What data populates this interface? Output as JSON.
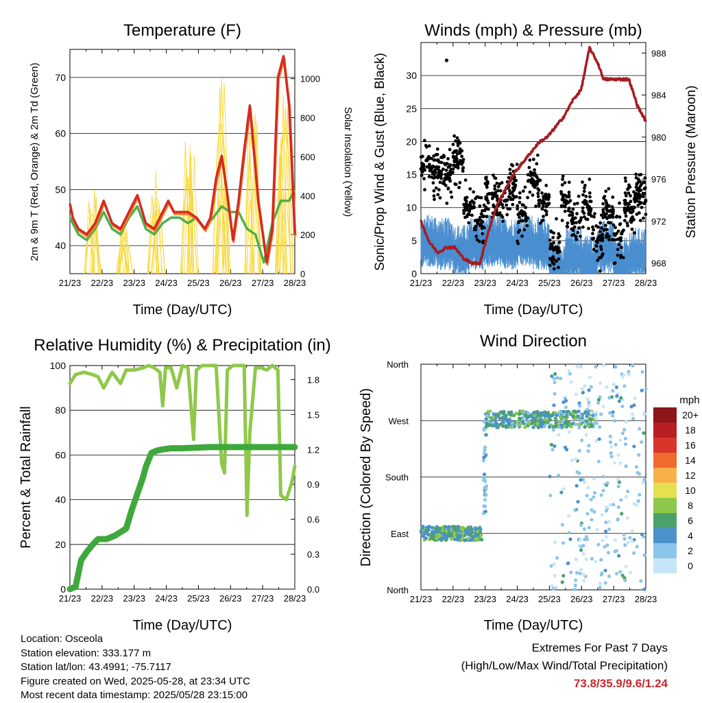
{
  "chart_data": [
    {
      "type": "line",
      "title": "Temperature (F)",
      "xlabel": "Time (Day/UTC)",
      "ylabel": "2m & 9m T (Red, Orange) & 2m Td (Green)",
      "ylabel_right": "Solar Insolation (Yellow)",
      "x_ticks": [
        "21/23",
        "22/23",
        "23/23",
        "24/23",
        "25/23",
        "26/23",
        "27/23",
        "28/23"
      ],
      "ylim": [
        35,
        75
      ],
      "y_ticks": [
        40,
        50,
        60,
        70
      ],
      "ylim_right": [
        0,
        1150
      ],
      "y_ticks_right": [
        0,
        200,
        400,
        600,
        800,
        1000
      ],
      "colors": {
        "t2m": "#d42a20",
        "t9m": "#f47d2a",
        "td": "#4eaf4a",
        "solar": "#f7d83a"
      },
      "series": [
        {
          "name": "2m T",
          "x": [
            0,
            0.1,
            0.3,
            0.6,
            0.9,
            1.2,
            1.5,
            1.8,
            2.1,
            2.4,
            2.7,
            3.0,
            3.2,
            3.5,
            3.7,
            4.0,
            4.2,
            4.5,
            4.8,
            5.0,
            5.2,
            5.4,
            5.6,
            5.8,
            6.0,
            6.2,
            6.4,
            6.7,
            7.0,
            7.2,
            7.4,
            7.6,
            7.8,
            8.0
          ],
          "values": [
            47.5,
            45,
            43,
            42,
            44,
            48,
            44,
            43,
            46,
            49,
            44,
            43,
            45,
            48,
            46,
            46,
            46,
            45,
            43,
            45,
            52,
            56,
            49,
            41,
            48,
            57,
            65,
            48,
            37,
            43,
            70,
            73.8,
            65,
            42
          ]
        },
        {
          "name": "2m Td",
          "x": [
            0,
            0.3,
            0.6,
            0.9,
            1.2,
            1.5,
            1.8,
            2.1,
            2.4,
            2.7,
            3.0,
            3.3,
            3.6,
            3.9,
            4.2,
            4.5,
            4.8,
            5.1,
            5.4,
            5.7,
            6.0,
            6.3,
            6.6,
            6.9,
            7.2,
            7.5,
            7.8,
            8.0
          ],
          "values": [
            45,
            42,
            41,
            43,
            46,
            43,
            42,
            45,
            47,
            43,
            42,
            44,
            45,
            45,
            44,
            45,
            43,
            45,
            47,
            46,
            46,
            43,
            42,
            37,
            44,
            48,
            48,
            50
          ]
        }
      ]
    },
    {
      "type": "scatter",
      "title": "Winds (mph) & Pressure (mb)",
      "xlabel": "Time (Day/UTC)",
      "ylabel": "Sonic/Prop Wind & Gust (Blue, Black)",
      "ylabel_right": "Station Pressure (Maroon)",
      "x_ticks": [
        "21/23",
        "22/23",
        "23/23",
        "24/23",
        "25/23",
        "26/23",
        "27/23",
        "28/23"
      ],
      "ylim": [
        0,
        35
      ],
      "y_ticks": [
        0,
        5,
        10,
        15,
        20,
        25,
        30
      ],
      "ylim_right": [
        967,
        989
      ],
      "y_ticks_right": [
        968,
        972,
        976,
        980,
        984,
        988
      ],
      "colors": {
        "wind": "#4a8fd0",
        "gust": "#000000",
        "pressure": "#a51c22"
      },
      "series": [
        {
          "name": "Station Pressure",
          "x": [
            0,
            0.3,
            0.6,
            0.9,
            1.2,
            1.5,
            1.8,
            2.1,
            2.4,
            2.7,
            3.0,
            3.3,
            3.6,
            3.9,
            4.2,
            4.5,
            4.8,
            5.1,
            5.4,
            5.7,
            6.0,
            6.1,
            6.3,
            6.5,
            6.8,
            7.1,
            7.4,
            7.7,
            8.0
          ],
          "values": [
            972,
            970,
            969,
            969.5,
            969.5,
            968.5,
            968,
            968,
            971,
            973.5,
            975,
            976.5,
            977.5,
            978.5,
            979.5,
            980,
            981,
            982,
            983.5,
            984.5,
            988.5,
            988,
            987,
            985.5,
            985.5,
            985.5,
            985.5,
            983,
            981.5
          ]
        }
      ]
    },
    {
      "type": "line",
      "title": "Relative Humidity (%) & Precipitation (in)",
      "xlabel": "Time (Day/UTC)",
      "ylabel": "Percent & Total Rainfall",
      "x_ticks": [
        "21/23",
        "22/23",
        "23/23",
        "24/23",
        "25/23",
        "26/23",
        "27/23",
        "28/23"
      ],
      "ylim": [
        0,
        100
      ],
      "y_ticks": [
        0,
        20,
        40,
        60,
        80,
        100
      ],
      "ylim_right": [
        0,
        1.92
      ],
      "y_ticks_right": [
        "0.0",
        "0.3",
        "0.6",
        "0.9",
        "1.2",
        "1.5",
        "1.8"
      ],
      "colors": {
        "rh": "#8fc84a",
        "precip": "#3fa83c"
      },
      "series": [
        {
          "name": "Relative Humidity",
          "x": [
            0,
            0.2,
            0.5,
            0.8,
            1.0,
            1.2,
            1.5,
            1.8,
            2.0,
            2.3,
            2.6,
            2.8,
            3.0,
            3.2,
            3.3,
            3.4,
            3.6,
            3.8,
            4.0,
            4.2,
            4.4,
            4.5,
            4.7,
            5.0,
            5.2,
            5.4,
            5.5,
            5.6,
            5.8,
            6.0,
            6.2,
            6.3,
            6.4,
            6.6,
            6.8,
            7.0,
            7.2,
            7.4,
            7.5,
            7.7,
            7.9,
            8.0
          ],
          "values": [
            92,
            96,
            97,
            96,
            95,
            90,
            97,
            92,
            98,
            98,
            99,
            100,
            99,
            97,
            82,
            99,
            99,
            90,
            100,
            99,
            67,
            98,
            100,
            100,
            100,
            56,
            52,
            98,
            100,
            100,
            100,
            33,
            70,
            99,
            99,
            98,
            100,
            98,
            42,
            40,
            48,
            55
          ]
        },
        {
          "name": "Total Precipitation",
          "x": [
            0,
            0.2,
            0.4,
            0.6,
            0.8,
            1.0,
            1.3,
            1.6,
            1.8,
            2.0,
            2.2,
            2.4,
            2.6,
            2.7,
            2.9,
            3.1,
            3.3,
            3.6,
            4.0,
            5.0,
            6.0,
            7.0,
            8.0
          ],
          "values": [
            0,
            0.02,
            0.25,
            0.32,
            0.38,
            0.43,
            0.43,
            0.46,
            0.49,
            0.52,
            0.68,
            0.82,
            0.96,
            1.05,
            1.17,
            1.19,
            1.2,
            1.21,
            1.21,
            1.22,
            1.22,
            1.22,
            1.22
          ]
        }
      ]
    },
    {
      "type": "scatter",
      "title": "Wind Direction",
      "xlabel": "Time (Day/UTC)",
      "ylabel": "Direction (Colored By Speed)",
      "x_ticks": [
        "21/23",
        "22/23",
        "23/23",
        "24/23",
        "25/23",
        "26/23",
        "27/23",
        "28/23"
      ],
      "y_ticks": [
        "North",
        "East",
        "South",
        "West",
        "North"
      ],
      "ylim": [
        0,
        360
      ],
      "legend_title": "mph",
      "legend_labels": [
        "0",
        "2",
        "4",
        "6",
        "8",
        "10",
        "12",
        "14",
        "16",
        "18",
        "20+"
      ],
      "legend_colors": [
        "#c6e6f7",
        "#8cc5ea",
        "#4b91cc",
        "#4aa26a",
        "#8dc84b",
        "#e5e04f",
        "#f7b149",
        "#ee6a2e",
        "#d9352a",
        "#b81e22",
        "#8c161a"
      ],
      "series": [
        {
          "name": "direction",
          "x": [
            0.0,
            0.3,
            0.6,
            0.9,
            1.2,
            1.5,
            1.8,
            2.1,
            2.5,
            2.9,
            3.2,
            3.6,
            4.0,
            4.4,
            4.8,
            5.2,
            5.6,
            6.0,
            6.4,
            6.8,
            7.2,
            7.6,
            8.0
          ],
          "values": [
            90,
            85,
            88,
            92,
            90,
            88,
            85,
            88,
            270,
            270,
            272,
            270,
            270,
            275,
            268,
            270,
            272,
            265,
            265,
            275,
            90,
            110,
            290
          ]
        }
      ]
    }
  ],
  "info": {
    "location": "Location: Osceola",
    "elevation": "Station elevation: 333.177 m",
    "latlon": "Station lat/lon: 43.4991; -75.7117",
    "created": "Figure created on Wed, 2025-05-28, at 23:34 UTC",
    "recent": "Most recent data timestamp: 2025/05/28 23:15:00"
  },
  "extremes": {
    "title": "Extremes For Past 7 Days",
    "subtitle": "(High/Low/Max Wind/Total Precipitation)",
    "values": "73.8/35.9/9.6/1.24"
  }
}
